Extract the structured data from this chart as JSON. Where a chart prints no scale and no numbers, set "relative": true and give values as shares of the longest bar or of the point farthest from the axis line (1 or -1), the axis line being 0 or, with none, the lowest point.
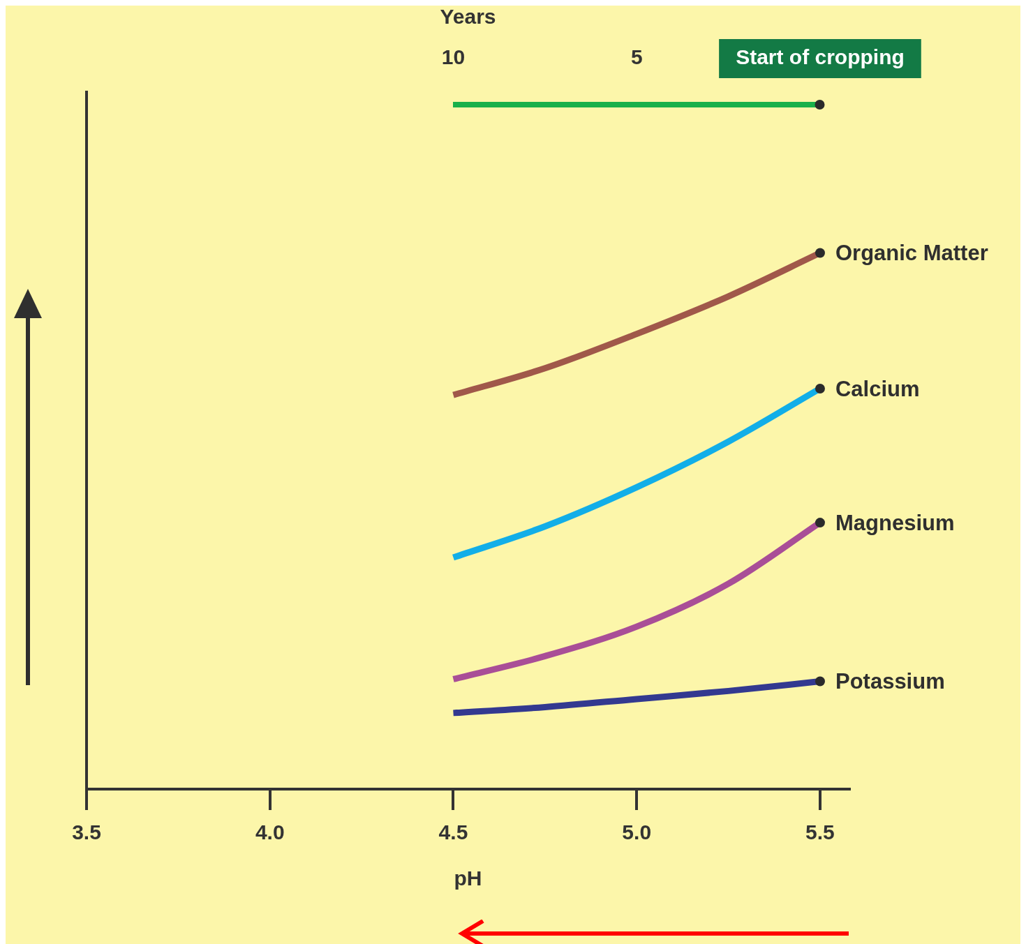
{
  "chart_data": {
    "type": "line",
    "relative": true,
    "xlabel": "pH",
    "x2label": "Years",
    "x": [
      4.5,
      4.75,
      5.0,
      5.25,
      5.5
    ],
    "xlim": [
      3.5,
      5.58
    ],
    "xticks": [
      {
        "value": 3.5,
        "label": "3.5"
      },
      {
        "value": 4.0,
        "label": "4.0"
      },
      {
        "value": 4.5,
        "label": "4.5"
      },
      {
        "value": 5.0,
        "label": "5.0"
      },
      {
        "value": 5.5,
        "label": "5.5"
      }
    ],
    "x2lim": [
      20,
      -0.8
    ],
    "x2ticks": [
      10,
      5,
      {
        "value": 0,
        "label": "Start of cropping"
      }
    ],
    "series": [
      {
        "name": "Organic Matter",
        "color": "#a0584a",
        "values": [
          0.735,
          0.785,
          0.849,
          0.919,
          1
        ]
      },
      {
        "name": "Calcium",
        "color": "#12aee8",
        "values": [
          0.432,
          0.49,
          0.563,
          0.648,
          0.747
        ]
      },
      {
        "name": "Magnesium",
        "color": "#a94e97",
        "values": [
          0.205,
          0.248,
          0.303,
          0.383,
          0.497
        ]
      },
      {
        "name": "Potassium",
        "color": "#333990",
        "values": [
          0.142,
          0.153,
          0.168,
          0.183,
          0.201
        ]
      }
    ],
    "grid": false,
    "legend": false
  }
}
